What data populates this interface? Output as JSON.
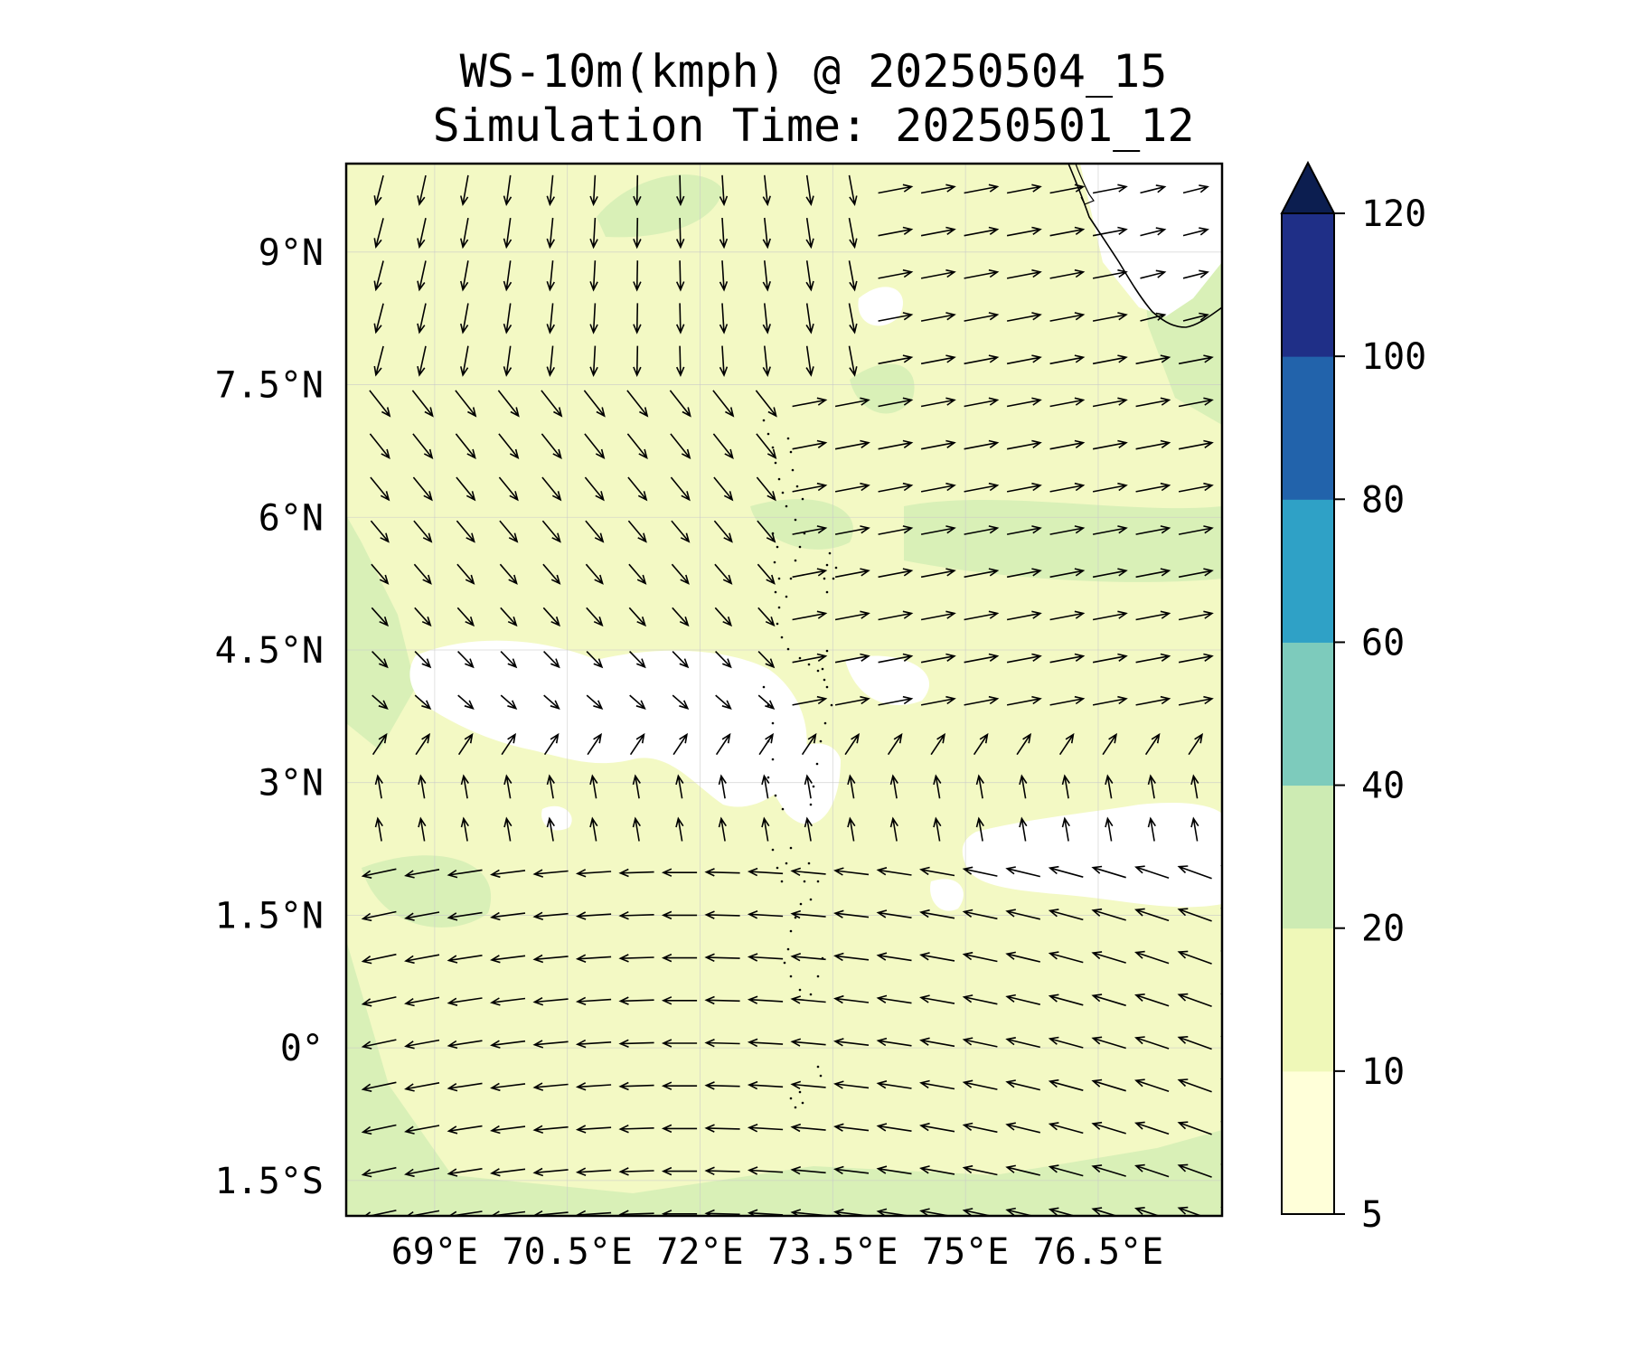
{
  "title": "WS-10m(kmph) @ 20250504_15",
  "subtitle": "Simulation Time: 20250501_12",
  "chart_data": {
    "type": "heatmap",
    "variable": "10 m wind speed (filled contours) with wind vectors",
    "x_ticks": [
      {
        "value": 69.0,
        "label": "69°E"
      },
      {
        "value": 70.5,
        "label": "70.5°E"
      },
      {
        "value": 72.0,
        "label": "72°E"
      },
      {
        "value": 73.5,
        "label": "73.5°E"
      },
      {
        "value": 75.0,
        "label": "75°E"
      },
      {
        "value": 76.5,
        "label": "76.5°E"
      }
    ],
    "y_ticks": [
      {
        "value": 9.0,
        "label": "9°N"
      },
      {
        "value": 7.5,
        "label": "7.5°N"
      },
      {
        "value": 6.0,
        "label": "6°N"
      },
      {
        "value": 4.5,
        "label": "4.5°N"
      },
      {
        "value": 3.0,
        "label": "3°N"
      },
      {
        "value": 1.5,
        "label": "1.5°N"
      },
      {
        "value": 0.0,
        "label": "0°"
      },
      {
        "value": -1.5,
        "label": "1.5°S"
      }
    ],
    "xlim": [
      68.0,
      77.9
    ],
    "ylim": [
      -1.9,
      10.0
    ],
    "grid": true,
    "colorbar": {
      "levels": [
        5,
        10,
        20,
        40,
        60,
        80,
        100,
        120
      ],
      "tick_labels": [
        "5",
        "10",
        "20",
        "40",
        "60",
        "80",
        "100",
        "120"
      ],
      "colors": [
        "#ffffd9",
        "#eff8b8",
        "#cdebb3",
        "#7dcbbc",
        "#2fa1c6",
        "#2263ab",
        "#1f2f87",
        "#0c1e50"
      ],
      "extend": "max"
    },
    "background_colors": {
      "calm": "#ffffff",
      "low": "#f3f9c4",
      "moderate": "#d4eeb5"
    },
    "coastline_color": "#000000",
    "vector_color": "#000000"
  }
}
